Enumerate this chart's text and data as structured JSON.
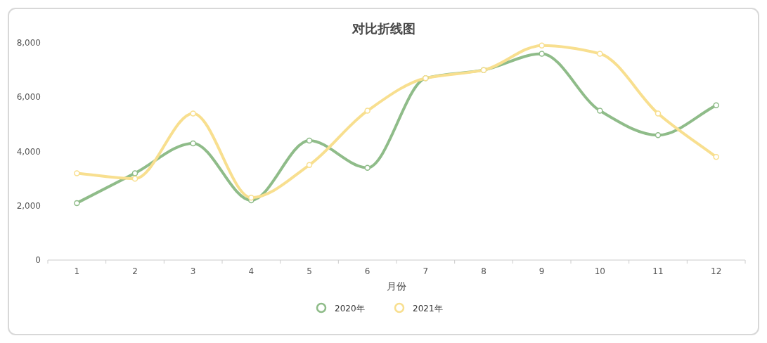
{
  "chart_data": {
    "type": "line",
    "title": "对比折线图",
    "xlabel": "月份",
    "categories": [
      "1",
      "2",
      "3",
      "4",
      "5",
      "6",
      "7",
      "8",
      "9",
      "10",
      "11",
      "12"
    ],
    "series": [
      {
        "name": "2020年",
        "color": "#8fbc89",
        "values": [
          2100,
          3200,
          4300,
          2200,
          4400,
          3400,
          6700,
          7000,
          7600,
          5500,
          4600,
          5700
        ]
      },
      {
        "name": "2021年",
        "color": "#f8df8f",
        "values": [
          3200,
          3000,
          5400,
          2300,
          3500,
          5500,
          6700,
          7000,
          7900,
          7600,
          5400,
          3800
        ]
      }
    ],
    "ylim": [
      0,
      8000
    ],
    "yticks": [
      0,
      {
        "value": 2000,
        "label": "2,000"
      },
      {
        "value": 4000,
        "label": "4,000"
      },
      {
        "value": 6000,
        "label": "6,000"
      },
      {
        "value": 8000,
        "label": "8,000"
      }
    ],
    "legend": "bottom",
    "marker": "circle"
  }
}
